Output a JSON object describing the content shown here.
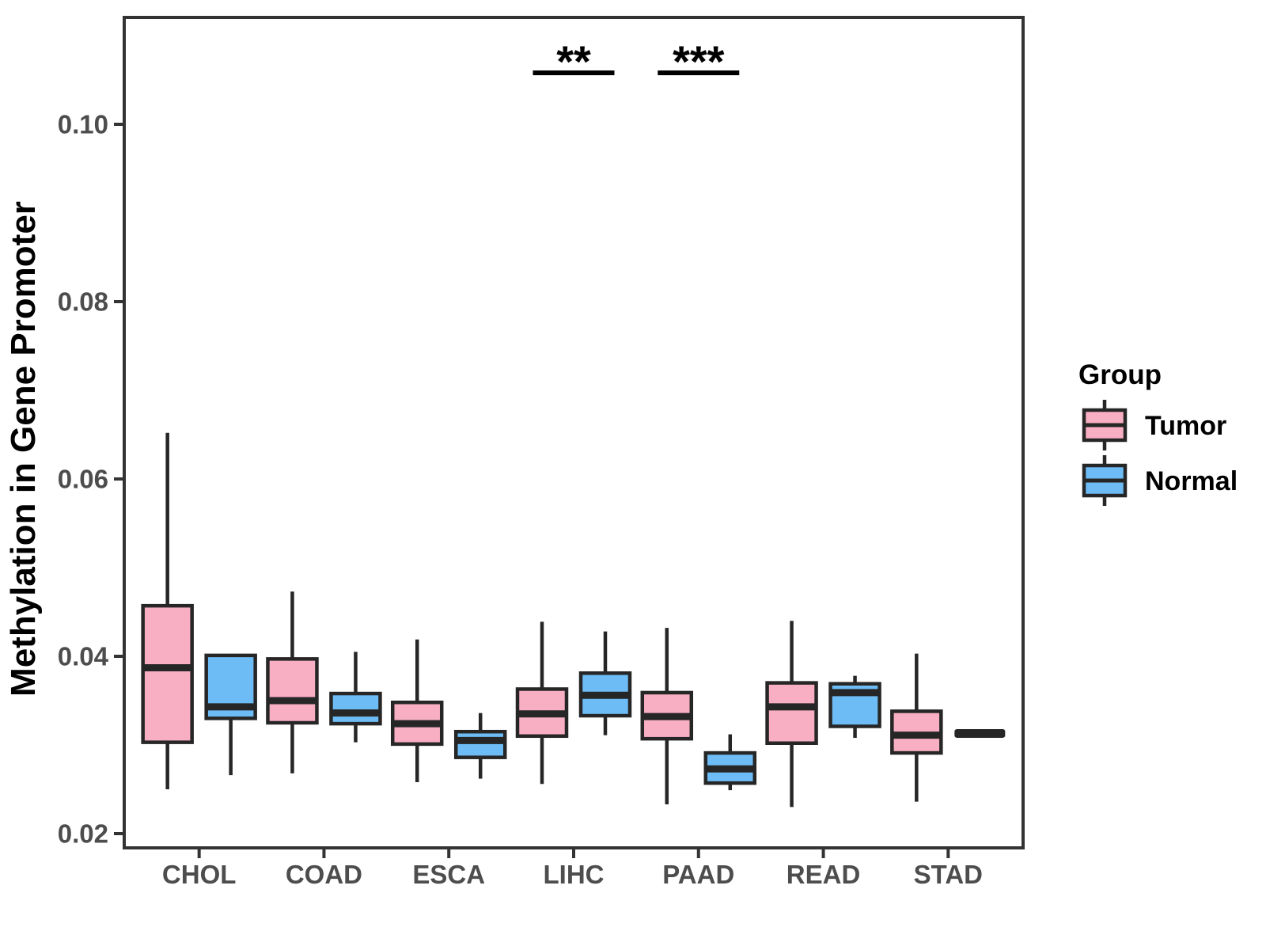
{
  "chart_data": {
    "type": "grouped_boxplot",
    "title": "",
    "xlabel": "",
    "ylabel": "Methylation in Gene Promoter",
    "ylim": [
      0.018,
      0.112
    ],
    "grid": false,
    "legend_position": "right",
    "categories": [
      "CHOL",
      "COAD",
      "ESCA",
      "LIHC",
      "PAAD",
      "READ",
      "STAD"
    ],
    "yticks": [
      {
        "value": 0.1,
        "label": "0.10"
      },
      {
        "value": 0.08,
        "label": "0.08"
      },
      {
        "value": 0.06,
        "label": "0.06"
      },
      {
        "value": 0.04,
        "label": "0.04"
      },
      {
        "value": 0.02,
        "label": "0.02"
      }
    ],
    "legend": {
      "title": "Group",
      "entries": [
        {
          "label": "Tumor",
          "color": "#F9AFC3"
        },
        {
          "label": "Normal",
          "color": "#6DBCF5"
        }
      ]
    },
    "series": [
      {
        "name": "Tumor",
        "color": "#F9AFC3",
        "boxes": [
          {
            "category": "CHOL",
            "whisker_low": 0.025,
            "q1": 0.0303,
            "median": 0.0387,
            "q3": 0.0457,
            "whisker_high": 0.0652
          },
          {
            "category": "COAD",
            "whisker_low": 0.0268,
            "q1": 0.0325,
            "median": 0.035,
            "q3": 0.0397,
            "whisker_high": 0.0473
          },
          {
            "category": "ESCA",
            "whisker_low": 0.0258,
            "q1": 0.0301,
            "median": 0.0324,
            "q3": 0.0348,
            "whisker_high": 0.0419
          },
          {
            "category": "LIHC",
            "whisker_low": 0.0256,
            "q1": 0.031,
            "median": 0.0335,
            "q3": 0.0363,
            "whisker_high": 0.0439
          },
          {
            "category": "PAAD",
            "whisker_low": 0.0233,
            "q1": 0.0307,
            "median": 0.0332,
            "q3": 0.0359,
            "whisker_high": 0.0432
          },
          {
            "category": "READ",
            "whisker_low": 0.023,
            "q1": 0.0302,
            "median": 0.0343,
            "q3": 0.037,
            "whisker_high": 0.044
          },
          {
            "category": "STAD",
            "whisker_low": 0.0236,
            "q1": 0.0291,
            "median": 0.0311,
            "q3": 0.0338,
            "whisker_high": 0.0403
          }
        ]
      },
      {
        "name": "Normal",
        "color": "#6DBCF5",
        "boxes": [
          {
            "category": "CHOL",
            "whisker_low": 0.0266,
            "q1": 0.033,
            "median": 0.0343,
            "q3": 0.0401,
            "whisker_high": 0.0401
          },
          {
            "category": "COAD",
            "whisker_low": 0.0303,
            "q1": 0.0324,
            "median": 0.0336,
            "q3": 0.0358,
            "whisker_high": 0.0405
          },
          {
            "category": "ESCA",
            "whisker_low": 0.0262,
            "q1": 0.0286,
            "median": 0.0305,
            "q3": 0.0315,
            "whisker_high": 0.0336
          },
          {
            "category": "LIHC",
            "whisker_low": 0.0311,
            "q1": 0.0333,
            "median": 0.0356,
            "q3": 0.0381,
            "whisker_high": 0.0428
          },
          {
            "category": "PAAD",
            "whisker_low": 0.0249,
            "q1": 0.0257,
            "median": 0.0273,
            "q3": 0.0291,
            "whisker_high": 0.0312
          },
          {
            "category": "READ",
            "whisker_low": 0.0308,
            "q1": 0.0321,
            "median": 0.0359,
            "q3": 0.0369,
            "whisker_high": 0.0378
          },
          {
            "category": "STAD",
            "whisker_low": 0.0313,
            "q1": 0.0313,
            "median": 0.0313,
            "q3": 0.0313,
            "whisker_high": 0.0313
          }
        ]
      }
    ],
    "annotations": [
      {
        "category": "LIHC",
        "label": "**"
      },
      {
        "category": "PAAD",
        "label": "***"
      }
    ]
  },
  "style": {
    "stroke_color": "#262626",
    "axis_color": "#333333",
    "tick_text_color": "#4D4D4D",
    "title_text_color": "#000000",
    "panel_background": "#FFFFFF"
  }
}
